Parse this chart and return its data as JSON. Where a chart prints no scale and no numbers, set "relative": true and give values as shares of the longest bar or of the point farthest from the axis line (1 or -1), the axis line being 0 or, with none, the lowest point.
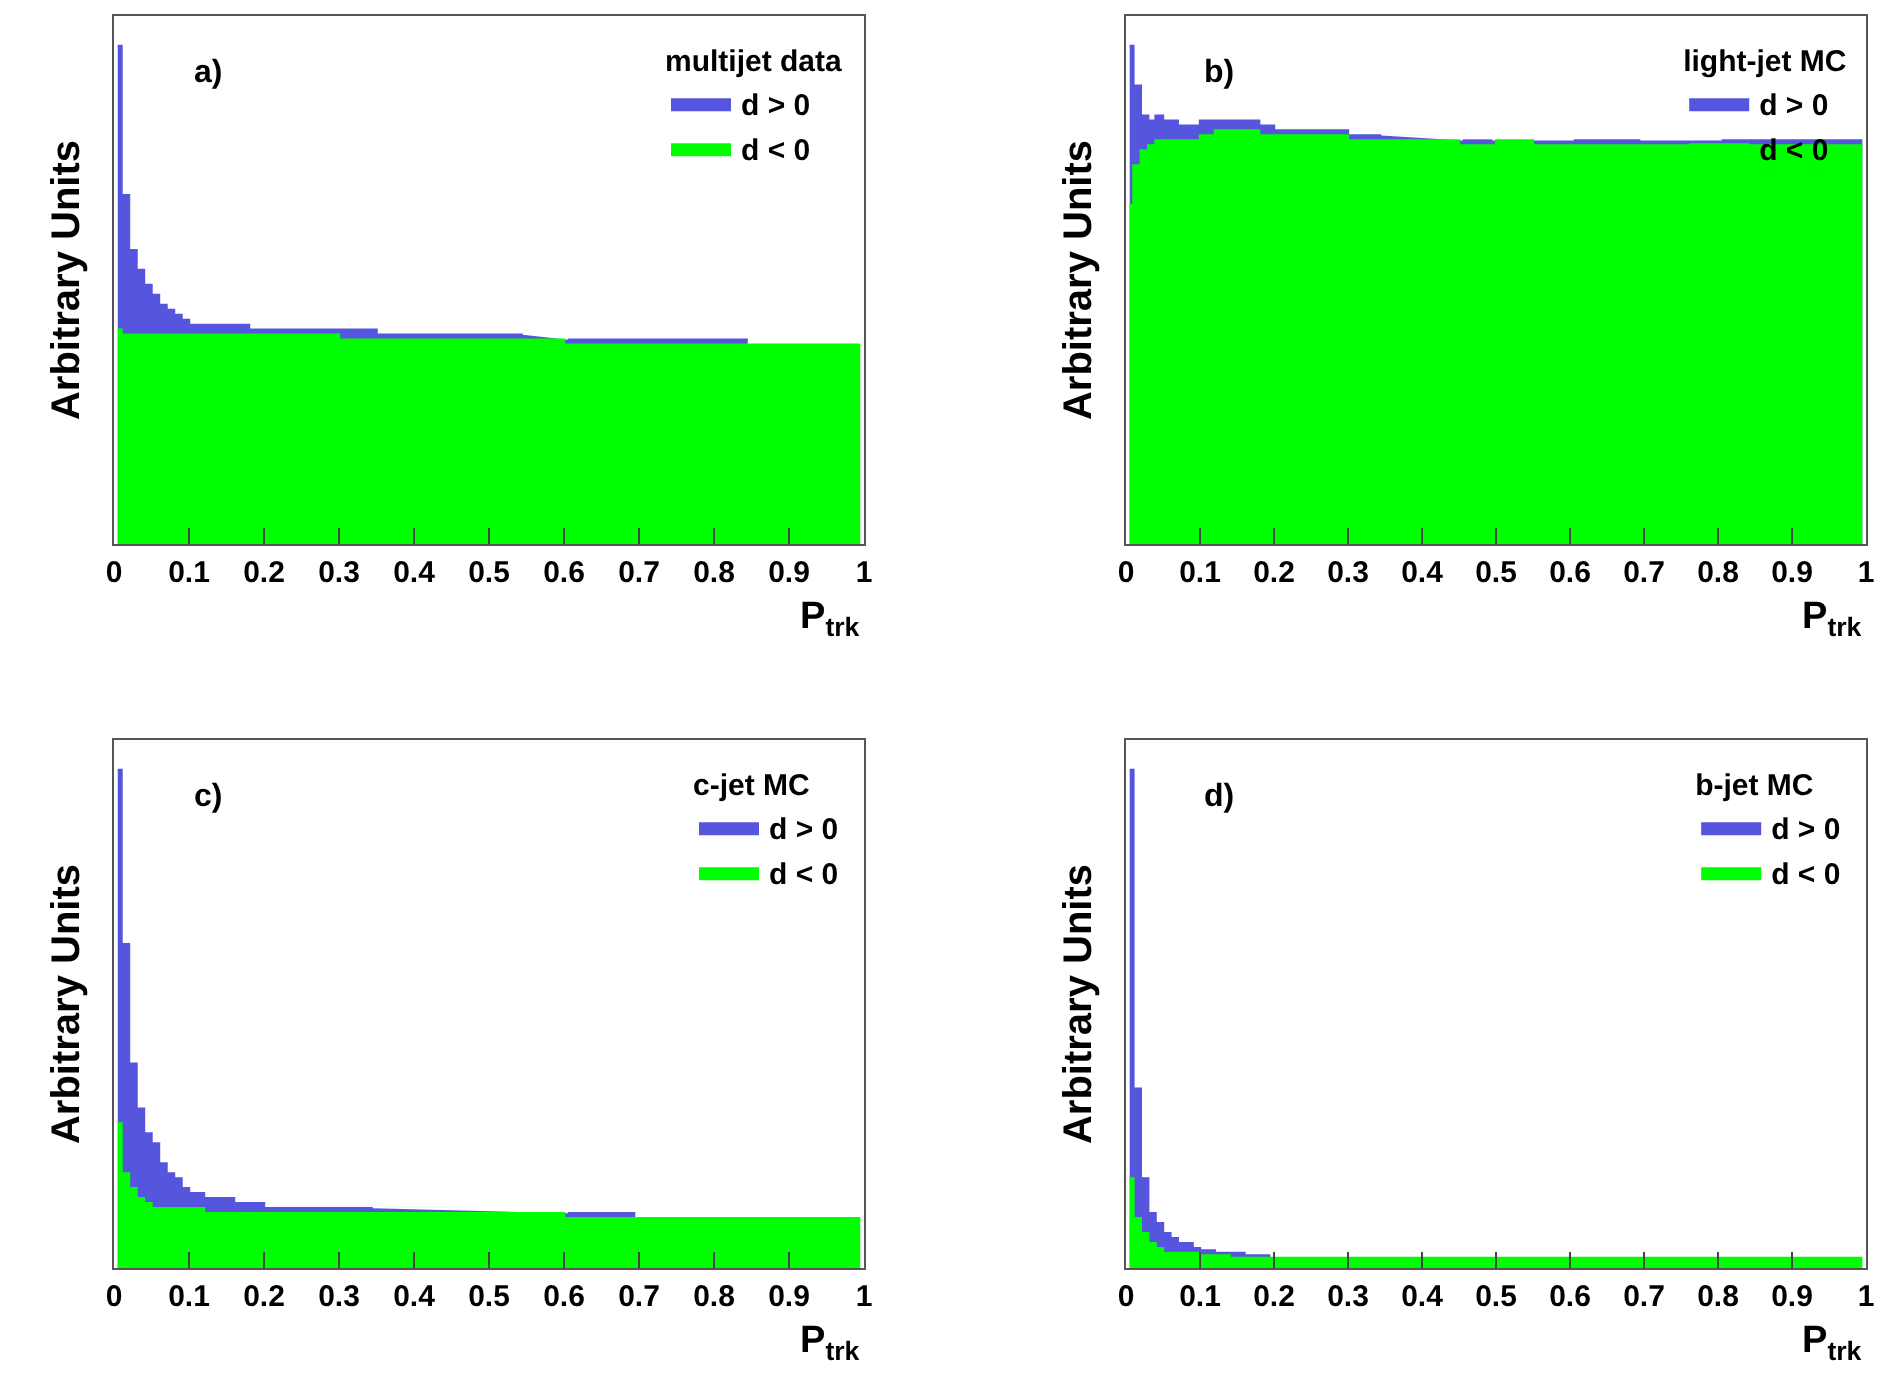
{
  "chart_data": [
    {
      "type": "area",
      "relative": true,
      "legend_title": "multijet data",
      "legend": "top right",
      "annotations": [
        "a)"
      ],
      "xlabel": "P$_{trk}$",
      "ylabel": "Arbitrary Units",
      "xlim": [
        0,
        1
      ],
      "xticks": [
        0,
        0.1,
        0.2,
        0.3,
        0.4,
        0.5,
        0.6,
        0.7,
        0.8,
        0.9,
        1
      ],
      "x": [
        0.005,
        0.015,
        0.025,
        0.035,
        0.045,
        0.055,
        0.065,
        0.075,
        0.085,
        0.095,
        0.105,
        0.115,
        0.125,
        0.135,
        0.145,
        0.155,
        0.165,
        0.175,
        0.185,
        0.195,
        0.205,
        0.215,
        0.225,
        0.235,
        0.245,
        0.255,
        0.265,
        0.275,
        0.285,
        0.295,
        0.305,
        0.315,
        0.325,
        0.335,
        0.345,
        0.355,
        0.365,
        0.375,
        0.385,
        0.395,
        0.405,
        0.415,
        0.425,
        0.435,
        0.445,
        0.455,
        0.465,
        0.475,
        0.485,
        0.495,
        0.505,
        0.515,
        0.525,
        0.535,
        0.545,
        0.555,
        0.565,
        0.575,
        0.585,
        0.595,
        0.605,
        0.615,
        0.625,
        0.635,
        0.645,
        0.655,
        0.665,
        0.675,
        0.685,
        0.695,
        0.705,
        0.715,
        0.725,
        0.735,
        0.745,
        0.755,
        0.765,
        0.775,
        0.785,
        0.795,
        0.805,
        0.815,
        0.825,
        0.835,
        0.845,
        0.855,
        0.865,
        0.875,
        0.885,
        0.895,
        0.905,
        0.915,
        0.925,
        0.935,
        0.945,
        0.955,
        0.965,
        0.975,
        0.985,
        0.995
      ],
      "series": [
        {
          "name": "d > 0",
          "color": "#5555dd",
          "values": [
            1.0,
            0.7,
            0.59,
            0.55,
            0.52,
            0.5,
            0.48,
            0.47,
            0.46,
            0.45,
            0.44,
            0.44,
            0.44,
            0.44,
            0.44,
            0.44,
            0.44,
            0.44,
            0.43,
            0.43,
            0.43,
            0.43,
            0.43,
            0.43,
            0.43,
            0.43,
            0.43,
            0.43,
            0.43,
            0.43,
            0.43,
            0.43,
            0.43,
            0.43,
            0.43,
            0.42,
            0.42,
            0.42,
            0.42,
            0.42,
            0.42,
            0.42,
            0.42,
            0.42,
            0.42,
            0.42,
            0.42,
            0.42,
            0.42,
            0.42,
            0.42,
            0.42,
            0.42,
            0.42,
            0.42,
            null,
            null,
            null,
            null,
            null,
            0.41,
            0.41,
            0.41,
            0.41,
            0.41,
            0.41,
            0.41,
            0.41,
            0.41,
            0.41,
            0.41,
            0.41,
            0.41,
            0.41,
            0.41,
            0.41,
            0.41,
            0.41,
            0.41,
            0.41,
            0.41,
            0.41,
            0.41,
            0.41,
            0.41,
            null,
            null,
            null,
            null,
            null,
            null,
            null,
            null,
            null,
            null,
            null,
            null,
            null,
            null,
            null
          ]
        },
        {
          "name": "d < 0",
          "color": "#00ff00",
          "values": [
            0.43,
            0.42,
            0.42,
            0.42,
            0.42,
            0.42,
            0.42,
            0.42,
            0.42,
            0.42,
            0.42,
            0.42,
            0.42,
            0.42,
            0.42,
            0.42,
            0.42,
            0.42,
            0.42,
            0.42,
            0.42,
            0.42,
            0.42,
            0.42,
            0.42,
            0.42,
            0.42,
            0.42,
            0.42,
            0.42,
            0.41,
            0.41,
            0.41,
            0.41,
            0.41,
            0.41,
            0.41,
            0.41,
            0.41,
            0.41,
            0.41,
            0.41,
            0.41,
            0.41,
            0.41,
            0.41,
            0.41,
            0.41,
            0.41,
            0.41,
            0.41,
            0.41,
            0.41,
            0.41,
            0.41,
            0.41,
            0.41,
            0.41,
            0.41,
            0.41,
            0.4,
            0.4,
            0.4,
            0.4,
            0.4,
            0.4,
            0.4,
            0.4,
            0.4,
            0.4,
            0.4,
            0.4,
            0.4,
            0.4,
            0.4,
            0.4,
            0.4,
            0.4,
            0.4,
            0.4,
            0.4,
            0.4,
            0.4,
            0.4,
            0.4,
            0.4,
            0.4,
            0.4,
            0.4,
            0.4,
            0.4,
            0.4,
            0.4,
            0.4,
            0.4,
            0.4,
            0.4,
            0.4,
            0.4,
            0.4
          ]
        }
      ]
    },
    {
      "type": "area",
      "relative": true,
      "legend_title": "light-jet MC",
      "legend": "top right",
      "annotations": [
        "b)"
      ],
      "xlabel": "P$_{trk}$",
      "ylabel": "Arbitrary Units",
      "xlim": [
        0,
        1
      ],
      "xticks": [
        0,
        0.1,
        0.2,
        0.3,
        0.4,
        0.5,
        0.6,
        0.7,
        0.8,
        0.9,
        1
      ],
      "x": [
        0.005,
        0.015,
        0.025,
        0.035,
        0.045,
        0.055,
        0.065,
        0.075,
        0.085,
        0.095,
        0.105,
        0.115,
        0.125,
        0.135,
        0.145,
        0.155,
        0.165,
        0.175,
        0.185,
        0.195,
        0.205,
        0.215,
        0.225,
        0.235,
        0.245,
        0.255,
        0.265,
        0.275,
        0.285,
        0.295,
        0.305,
        0.315,
        0.325,
        0.335,
        0.345,
        0.355,
        0.365,
        0.375,
        0.385,
        0.395,
        0.405,
        0.415,
        0.425,
        0.435,
        0.445,
        0.455,
        0.465,
        0.475,
        0.485,
        0.495,
        0.505,
        0.515,
        0.525,
        0.535,
        0.545,
        0.555,
        0.565,
        0.575,
        0.585,
        0.595,
        0.605,
        0.615,
        0.625,
        0.635,
        0.645,
        0.655,
        0.665,
        0.675,
        0.685,
        0.695,
        0.705,
        0.715,
        0.725,
        0.735,
        0.745,
        0.755,
        0.765,
        0.775,
        0.785,
        0.795,
        0.805,
        0.815,
        0.825,
        0.835,
        0.845,
        0.855,
        0.865,
        0.875,
        0.885,
        0.895,
        0.905,
        0.915,
        0.925,
        0.935,
        0.945,
        0.955,
        0.965,
        0.975,
        0.985,
        0.995
      ],
      "series": [
        {
          "name": "d > 0",
          "color": "#5555dd",
          "values": [
            1.0,
            0.92,
            0.86,
            0.85,
            0.86,
            0.85,
            0.85,
            0.84,
            0.84,
            0.84,
            0.85,
            0.85,
            0.85,
            0.85,
            0.85,
            0.85,
            0.85,
            0.85,
            0.84,
            0.84,
            0.83,
            0.83,
            0.83,
            0.83,
            0.83,
            0.83,
            0.83,
            0.83,
            0.83,
            0.83,
            0.82,
            0.82,
            0.82,
            0.82,
            0.82,
            null,
            null,
            null,
            null,
            null,
            null,
            null,
            null,
            null,
            null,
            0.81,
            0.81,
            0.81,
            0.81,
            0.81,
            null,
            null,
            null,
            null,
            null,
            null,
            null,
            null,
            null,
            null,
            0.81,
            0.81,
            0.81,
            0.81,
            0.81,
            0.81,
            0.81,
            0.81,
            0.81,
            0.81,
            null,
            null,
            null,
            null,
            null,
            null,
            null,
            null,
            null,
            null,
            0.81,
            0.81,
            0.81,
            0.81,
            0.81,
            0.81,
            0.81,
            0.81,
            0.81,
            0.81,
            0.81,
            0.81,
            0.81,
            0.81,
            0.81,
            0.81,
            0.81,
            0.81,
            0.81,
            0.81
          ]
        },
        {
          "name": "d < 0",
          "color": "#00ff00",
          "values": [
            0.68,
            0.76,
            0.79,
            0.8,
            0.81,
            0.81,
            0.81,
            0.81,
            0.81,
            0.81,
            0.82,
            0.82,
            0.83,
            0.83,
            0.83,
            0.83,
            0.83,
            0.83,
            0.82,
            0.82,
            0.82,
            0.82,
            0.82,
            0.82,
            0.82,
            0.82,
            0.82,
            0.82,
            0.82,
            0.82,
            0.81,
            0.81,
            0.81,
            0.81,
            0.81,
            0.81,
            0.81,
            0.81,
            0.81,
            0.81,
            0.81,
            0.81,
            0.81,
            0.81,
            0.81,
            0.8,
            0.8,
            0.8,
            0.8,
            0.8,
            0.81,
            0.81,
            0.81,
            0.81,
            0.81,
            0.8,
            0.8,
            0.8,
            0.8,
            0.8,
            0.8,
            0.8,
            0.8,
            0.8,
            0.8,
            0.8,
            0.8,
            0.8,
            0.8,
            0.8,
            0.8,
            0.8,
            0.8,
            0.8,
            0.8,
            0.8,
            0.8,
            0.8,
            0.8,
            0.8,
            0.8,
            0.8,
            0.8,
            0.8,
            0.8,
            0.8,
            0.8,
            0.8,
            0.8,
            0.8,
            0.8,
            0.8,
            0.8,
            0.8,
            0.8,
            0.8,
            0.8,
            0.8,
            0.8,
            0.8
          ]
        }
      ]
    },
    {
      "type": "area",
      "relative": true,
      "legend_title": "c-jet MC",
      "legend": "top right",
      "annotations": [
        "c)"
      ],
      "xlabel": "P$_{trk}$",
      "ylabel": "Arbitrary Units",
      "xlim": [
        0,
        1
      ],
      "xticks": [
        0,
        0.1,
        0.2,
        0.3,
        0.4,
        0.5,
        0.6,
        0.7,
        0.8,
        0.9,
        1
      ],
      "x": [
        0.005,
        0.015,
        0.025,
        0.035,
        0.045,
        0.055,
        0.065,
        0.075,
        0.085,
        0.095,
        0.105,
        0.115,
        0.125,
        0.135,
        0.145,
        0.155,
        0.165,
        0.175,
        0.185,
        0.195,
        0.205,
        0.215,
        0.225,
        0.235,
        0.245,
        0.255,
        0.265,
        0.275,
        0.285,
        0.295,
        0.305,
        0.315,
        0.325,
        0.335,
        0.345,
        0.355,
        0.365,
        0.375,
        0.385,
        0.395,
        0.405,
        0.415,
        0.425,
        0.435,
        0.445,
        0.455,
        0.465,
        0.475,
        0.485,
        0.495,
        0.505,
        0.515,
        0.525,
        0.535,
        0.545,
        0.555,
        0.565,
        0.575,
        0.585,
        0.595,
        0.605,
        0.615,
        0.625,
        0.635,
        0.645,
        0.655,
        0.665,
        0.675,
        0.685,
        0.695,
        0.705,
        0.715,
        0.725,
        0.735,
        0.745,
        0.755,
        0.765,
        0.775,
        0.785,
        0.795,
        0.805,
        0.815,
        0.825,
        0.835,
        0.845,
        0.855,
        0.865,
        0.875,
        0.885,
        0.895,
        0.905,
        0.915,
        0.925,
        0.935,
        0.945,
        0.955,
        0.965,
        0.975,
        0.985,
        0.995
      ],
      "series": [
        {
          "name": "d > 0",
          "color": "#5555dd",
          "values": [
            1.0,
            0.65,
            0.41,
            0.32,
            0.27,
            0.25,
            0.21,
            0.19,
            0.18,
            0.16,
            0.15,
            0.15,
            0.14,
            0.14,
            0.14,
            0.14,
            0.13,
            0.13,
            0.13,
            0.13,
            0.12,
            0.12,
            0.12,
            0.12,
            0.12,
            0.12,
            0.12,
            0.12,
            0.12,
            0.12,
            0.12,
            0.12,
            0.12,
            0.12,
            0.12,
            null,
            null,
            null,
            null,
            null,
            null,
            null,
            null,
            null,
            null,
            null,
            null,
            null,
            null,
            null,
            null,
            null,
            null,
            null,
            null,
            null,
            null,
            null,
            null,
            null,
            0.11,
            0.11,
            0.11,
            0.11,
            0.11,
            0.11,
            0.11,
            0.11,
            0.11,
            0.11,
            null,
            null,
            null,
            null,
            null,
            null,
            null,
            null,
            null,
            null,
            null,
            null,
            null,
            null,
            null,
            null,
            null,
            null,
            null,
            null,
            null,
            null,
            null,
            null,
            null,
            null,
            null,
            null,
            null,
            null
          ]
        },
        {
          "name": "d < 0",
          "color": "#00ff00",
          "values": [
            0.29,
            0.19,
            0.16,
            0.14,
            0.13,
            0.12,
            0.12,
            0.12,
            0.12,
            0.12,
            0.12,
            0.12,
            0.11,
            0.11,
            0.11,
            0.11,
            0.11,
            0.11,
            0.11,
            0.11,
            0.11,
            0.11,
            0.11,
            0.11,
            0.11,
            0.11,
            0.11,
            0.11,
            0.11,
            0.11,
            0.11,
            0.11,
            0.11,
            0.11,
            0.11,
            0.11,
            0.11,
            0.11,
            0.11,
            0.11,
            0.11,
            0.11,
            0.11,
            0.11,
            0.11,
            0.11,
            0.11,
            0.11,
            0.11,
            0.11,
            0.11,
            0.11,
            0.11,
            0.11,
            0.11,
            0.11,
            0.11,
            0.11,
            0.11,
            0.11,
            0.1,
            0.1,
            0.1,
            0.1,
            0.1,
            0.1,
            0.1,
            0.1,
            0.1,
            0.1,
            0.1,
            0.1,
            0.1,
            0.1,
            0.1,
            0.1,
            0.1,
            0.1,
            0.1,
            0.1,
            0.1,
            0.1,
            0.1,
            0.1,
            0.1,
            0.1,
            0.1,
            0.1,
            0.1,
            0.1,
            0.1,
            0.1,
            0.1,
            0.1,
            0.1,
            0.1,
            0.1,
            0.1,
            0.1,
            0.1
          ]
        }
      ]
    },
    {
      "type": "area",
      "relative": true,
      "legend_title": "b-jet MC",
      "legend": "top right",
      "annotations": [
        "d)"
      ],
      "xlabel": "P$_{trk}$",
      "ylabel": "Arbitrary Units",
      "xlim": [
        0,
        1
      ],
      "xticks": [
        0,
        0.1,
        0.2,
        0.3,
        0.4,
        0.5,
        0.6,
        0.7,
        0.8,
        0.9,
        1
      ],
      "x": [
        0.005,
        0.015,
        0.025,
        0.035,
        0.045,
        0.055,
        0.065,
        0.075,
        0.085,
        0.095,
        0.105,
        0.115,
        0.125,
        0.135,
        0.145,
        0.155,
        0.165,
        0.175,
        0.185,
        0.195,
        0.205,
        0.215,
        0.225,
        0.235,
        0.245,
        0.255,
        0.265,
        0.275,
        0.285,
        0.295,
        0.305,
        0.315,
        0.325,
        0.335,
        0.345,
        0.355,
        0.365,
        0.375,
        0.385,
        0.395,
        0.405,
        0.415,
        0.425,
        0.435,
        0.445,
        0.455,
        0.465,
        0.475,
        0.485,
        0.495,
        0.505,
        0.515,
        0.525,
        0.535,
        0.545,
        0.555,
        0.565,
        0.575,
        0.585,
        0.595,
        0.605,
        0.615,
        0.625,
        0.635,
        0.645,
        0.655,
        0.665,
        0.675,
        0.685,
        0.695,
        0.705,
        0.715,
        0.725,
        0.735,
        0.745,
        0.755,
        0.765,
        0.775,
        0.785,
        0.795,
        0.805,
        0.815,
        0.825,
        0.835,
        0.845,
        0.855,
        0.865,
        0.875,
        0.885,
        0.895,
        0.905,
        0.915,
        0.925,
        0.935,
        0.945,
        0.955,
        0.965,
        0.975,
        0.985,
        0.995
      ],
      "series": [
        {
          "name": "d > 0",
          "color": "#5555dd",
          "values": [
            1.0,
            0.36,
            0.18,
            0.11,
            0.09,
            0.07,
            0.06,
            0.05,
            0.05,
            0.04,
            0.035,
            0.035,
            0.03,
            0.03,
            0.03,
            0.03,
            0.025,
            0.025,
            0.025,
            0.025,
            null,
            null,
            null,
            null,
            null,
            null,
            null,
            null,
            null,
            null,
            null,
            null,
            null,
            null,
            null,
            null,
            null,
            null,
            null,
            null,
            null,
            null,
            null,
            null,
            null,
            null,
            null,
            null,
            null,
            null,
            null,
            null,
            null,
            null,
            null,
            null,
            null,
            null,
            null,
            null,
            null,
            null,
            null,
            null,
            null,
            null,
            null,
            null,
            null,
            null,
            null,
            null,
            null,
            null,
            null,
            null,
            null,
            null,
            null,
            null,
            null,
            null,
            null,
            null,
            null,
            null,
            null,
            null,
            null,
            null,
            null,
            null,
            null,
            null,
            null,
            null,
            null,
            null,
            null,
            null
          ]
        },
        {
          "name": "d < 0",
          "color": "#00ff00",
          "values": [
            0.18,
            0.1,
            0.07,
            0.05,
            0.04,
            0.03,
            0.03,
            0.03,
            0.03,
            0.03,
            0.025,
            0.025,
            0.025,
            0.025,
            0.02,
            0.02,
            0.02,
            0.02,
            0.02,
            0.02,
            0.02,
            0.02,
            0.02,
            0.02,
            0.02,
            0.02,
            0.02,
            0.02,
            0.02,
            0.02,
            0.02,
            0.02,
            0.02,
            0.02,
            0.02,
            0.02,
            0.02,
            0.02,
            0.02,
            0.02,
            0.02,
            0.02,
            0.02,
            0.02,
            0.02,
            0.02,
            0.02,
            0.02,
            0.02,
            0.02,
            0.02,
            0.02,
            0.02,
            0.02,
            0.02,
            0.02,
            0.02,
            0.02,
            0.02,
            0.02,
            0.02,
            0.02,
            0.02,
            0.02,
            0.02,
            0.02,
            0.02,
            0.02,
            0.02,
            0.02,
            0.02,
            0.02,
            0.02,
            0.02,
            0.02,
            0.02,
            0.02,
            0.02,
            0.02,
            0.02,
            0.02,
            0.02,
            0.02,
            0.02,
            0.02,
            0.02,
            0.02,
            0.02,
            0.02,
            0.02,
            0.02,
            0.02,
            0.02,
            0.02,
            0.02,
            0.02,
            0.02,
            0.02,
            0.02,
            0.02
          ]
        }
      ]
    }
  ]
}
